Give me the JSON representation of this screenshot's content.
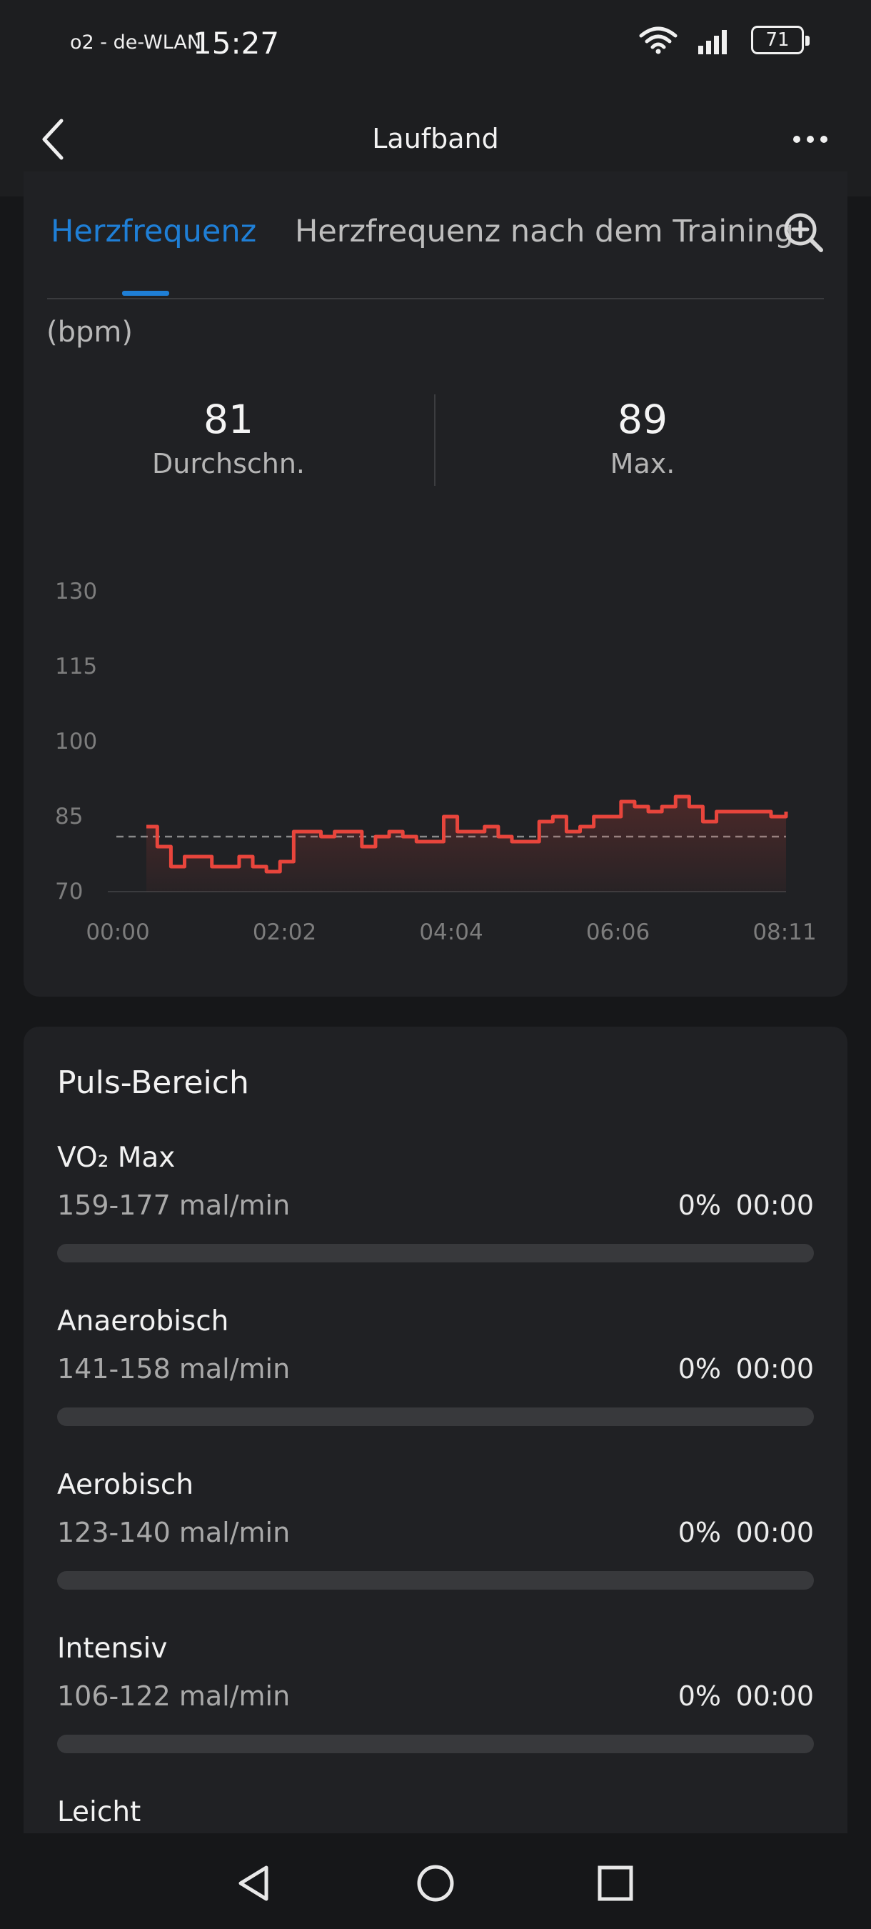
{
  "status_bar": {
    "carrier": "o2 - de-WLAN",
    "time": "15:27",
    "battery": "71",
    "wifi_icon": "wifi-icon",
    "signal_icon": "signal-icon"
  },
  "app_bar": {
    "title": "Laufband",
    "back_icon": "back-arrow-icon",
    "more_icon": "more-icon"
  },
  "tabs": [
    {
      "label": "Herzfrequenz",
      "active": true
    },
    {
      "label": "Herzfrequenz nach dem Training",
      "active": false
    }
  ],
  "zoom_icon": "zoom-in-icon",
  "unit": "(bpm)",
  "stats": {
    "average": {
      "value": "81",
      "label": "Durchschn."
    },
    "max": {
      "value": "89",
      "label": "Max."
    }
  },
  "colors": {
    "accent": "#1f7fd6",
    "line": "#e8453c",
    "background": "#202124"
  },
  "chart_data": {
    "type": "line",
    "title": "",
    "xlabel": "",
    "ylabel": "",
    "y_ticks": [
      "130",
      "115",
      "100",
      "85",
      "70"
    ],
    "x_ticks": [
      "00:00",
      "02:02",
      "04:04",
      "06:06",
      "08:11"
    ],
    "ylim": [
      70,
      130
    ],
    "xlim": [
      0,
      491
    ],
    "average_line": 81,
    "grid": false,
    "series": [
      {
        "x": [
          22,
          30,
          40,
          50,
          60,
          70,
          80,
          90,
          100,
          110,
          120,
          130,
          140,
          150,
          160,
          170,
          180,
          190,
          200,
          210,
          220,
          230,
          240,
          250,
          260,
          270,
          280,
          290,
          300,
          310,
          320,
          330,
          340,
          350,
          360,
          370,
          380,
          390,
          400,
          410,
          420,
          430,
          440,
          450,
          460,
          470,
          480,
          491
        ],
        "y": [
          83,
          79,
          75,
          77,
          77,
          75,
          75,
          77,
          75,
          74,
          76,
          82,
          82,
          81,
          82,
          82,
          79,
          81,
          82,
          81,
          80,
          80,
          85,
          82,
          82,
          83,
          81,
          80,
          80,
          84,
          85,
          82,
          83,
          85,
          85,
          88,
          87,
          86,
          87,
          89,
          87,
          84,
          86,
          86,
          86,
          86,
          85,
          86
        ]
      }
    ]
  },
  "zones": {
    "title": "Puls-Bereich",
    "items": [
      {
        "name": "VO₂ Max",
        "range": "159-177 mal/min",
        "percent": "0%",
        "time": "00:00",
        "fill": 0
      },
      {
        "name": "Anaerobisch",
        "range": "141-158 mal/min",
        "percent": "0%",
        "time": "00:00",
        "fill": 0
      },
      {
        "name": "Aerobisch",
        "range": "123-140 mal/min",
        "percent": "0%",
        "time": "00:00",
        "fill": 0
      },
      {
        "name": "Intensiv",
        "range": "106-122 mal/min",
        "percent": "0%",
        "time": "00:00",
        "fill": 0
      },
      {
        "name": "Leicht"
      }
    ]
  },
  "nav": {
    "back_icon": "nav-back-icon",
    "home_icon": "nav-home-icon",
    "recents_icon": "nav-recents-icon"
  }
}
